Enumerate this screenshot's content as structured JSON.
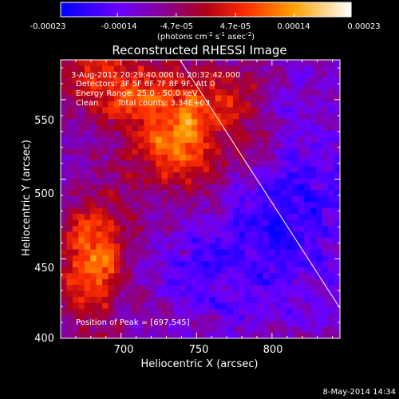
{
  "chart_data": {
    "type": "heatmap",
    "title": "Reconstructed RHESSI Image",
    "xlabel": "Heliocentric X (arcsec)",
    "ylabel": "Heliocentric Y (arcsec)",
    "xlim": [
      660,
      845
    ],
    "ylim": [
      400,
      575
    ],
    "x_ticks": [
      "700",
      "750",
      "800"
    ],
    "y_ticks": [
      "400",
      "450",
      "500",
      "550"
    ],
    "colorbar": {
      "ticks": [
        "-0.00023",
        "-0.00014",
        "-4.7e-05",
        "4.7e-05",
        "0.00014",
        "0.00023"
      ],
      "unit_label_parts": [
        "(photons cm",
        "-2",
        " s",
        "-1",
        " asec",
        "-2",
        ")"
      ],
      "range": [
        -0.00023,
        0.00023
      ]
    },
    "annotations": {
      "time_range": "3-Aug-2012 20:29:40.000 to 20:32:42.000",
      "detectors": "Detectors: 3F 5F 6F 7F 8F 9F, Att 0",
      "energy": "Energy Range: 25.0 - 50.0 keV",
      "method": "Clean",
      "counts": "Total counts: 3.34E+03",
      "peak": "Position of Peak = [697,545]"
    },
    "limb_line": {
      "x": [
        739,
        845
      ],
      "y": [
        575,
        419
      ]
    },
    "peak_position": [
      697,
      545
    ]
  },
  "footer": {
    "date": "8-May-2014 14:34"
  }
}
